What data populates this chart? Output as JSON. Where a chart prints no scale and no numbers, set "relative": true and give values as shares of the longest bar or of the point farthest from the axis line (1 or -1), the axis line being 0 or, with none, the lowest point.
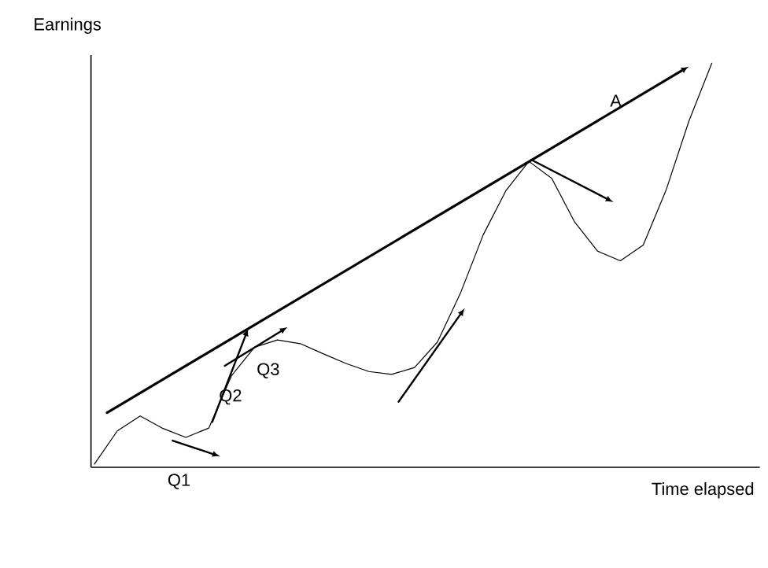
{
  "chart_data": {
    "type": "line",
    "relative": true,
    "xlabel": "Time elapsed",
    "ylabel": "Earnings",
    "marker": "none",
    "line_style": "solid",
    "categories": [
      null,
      null,
      null,
      null,
      null,
      null,
      null,
      null,
      null,
      null,
      null,
      null,
      null,
      null,
      null,
      null,
      null,
      null,
      null,
      null,
      null,
      null,
      null,
      null,
      null,
      null,
      null,
      null
    ],
    "series": [
      {
        "color": "#000000",
        "values": [
          0.008,
          0.09,
          0.127,
          0.096,
          0.074,
          0.097,
          0.227,
          0.297,
          0.315,
          0.306,
          0.281,
          0.257,
          0.237,
          0.23,
          0.247,
          0.31,
          0.43,
          0.575,
          0.685,
          0.757,
          0.715,
          0.607,
          0.535,
          0.511,
          0.55,
          0.686,
          0.857,
          1
        ]
      }
    ],
    "annotations": [
      "A",
      "Q1",
      "Q2",
      "Q3"
    ]
  }
}
